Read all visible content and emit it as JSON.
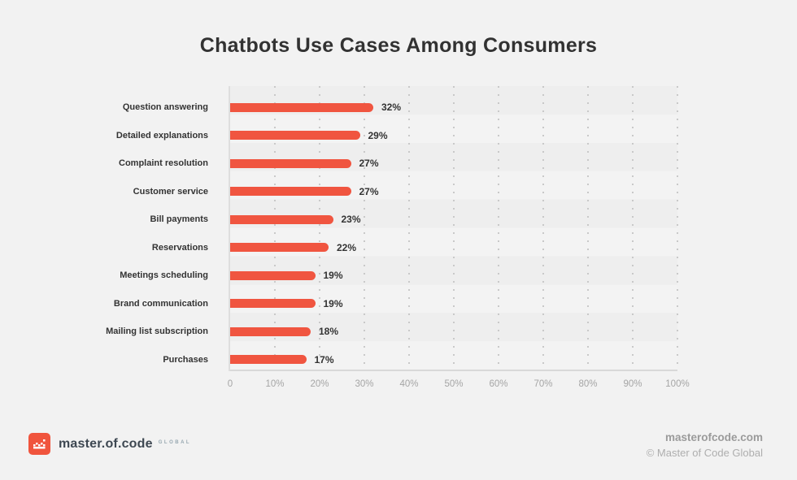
{
  "title": "Chatbots Use Cases Among Consumers",
  "chart_data": {
    "type": "bar",
    "orientation": "horizontal",
    "title": "Chatbots Use Cases Among Consumers",
    "categories": [
      "Question answering",
      "Detailed explanations",
      "Complaint resolution",
      "Customer service",
      "Bill payments",
      "Reservations",
      "Meetings scheduling",
      "Brand communication",
      "Mailing list subscription",
      "Purchases"
    ],
    "values": [
      32,
      29,
      27,
      27,
      23,
      22,
      19,
      19,
      18,
      17
    ],
    "value_suffix": "%",
    "xlabel": "",
    "ylabel": "",
    "xlim": [
      0,
      100
    ],
    "x_ticks": [
      "0",
      "10%",
      "20%",
      "30%",
      "40%",
      "50%",
      "60%",
      "70%",
      "80%",
      "90%",
      "100%"
    ],
    "grid": "vertical-dotted",
    "legend": "none",
    "bar_color": "#f05540"
  },
  "colors": {
    "background": "#f2f2f2",
    "bar": "#f05540",
    "title_text": "#323232",
    "label_text": "#333333",
    "axis_text": "#a5a5a5",
    "logo_box": "#f0543d"
  },
  "footer": {
    "brand": "master.of.code",
    "brand_suffix": "GLOBAL",
    "website": "masterofcode.com",
    "copyright": "© Master of Code Global"
  }
}
